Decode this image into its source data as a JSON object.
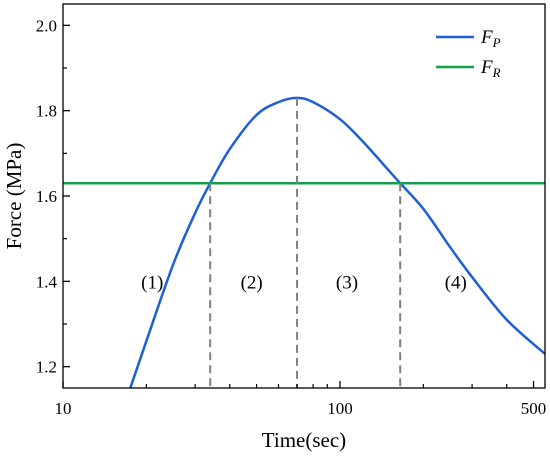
{
  "chart_data": {
    "type": "line",
    "xlabel": "Time(sec)",
    "ylabel": "Force (MPa)",
    "x_scale": "log",
    "xlim": [
      10,
      550
    ],
    "ylim": [
      1.15,
      2.05
    ],
    "x_ticks": [
      10,
      100,
      500
    ],
    "y_ticks": [
      1.2,
      1.4,
      1.6,
      1.8,
      2.0
    ],
    "grid": false,
    "legend_position": "top-right",
    "series": [
      {
        "name_main": "F",
        "name_sub": "P",
        "color": "#1f5fd6",
        "x": [
          17.5,
          20,
          25,
          30,
          34,
          40,
          50,
          60,
          70,
          80,
          100,
          120,
          150,
          165,
          200,
          250,
          300,
          400,
          550
        ],
        "y": [
          1.15,
          1.26,
          1.44,
          1.56,
          1.63,
          1.71,
          1.79,
          1.82,
          1.83,
          1.82,
          1.78,
          1.73,
          1.66,
          1.63,
          1.57,
          1.48,
          1.41,
          1.31,
          1.23
        ]
      },
      {
        "name_main": "F",
        "name_sub": "R",
        "color": "#14a04a",
        "x": [
          10,
          550
        ],
        "y": [
          1.63,
          1.63
        ]
      }
    ],
    "annotations": {
      "dashed_lines_x": [
        34,
        70,
        165
      ],
      "dashed_line_color": "#808080",
      "regions": [
        {
          "label": "(1)",
          "x": 21,
          "y": 1.4
        },
        {
          "label": "(2)",
          "x": 48,
          "y": 1.4
        },
        {
          "label": "(3)",
          "x": 106,
          "y": 1.4
        },
        {
          "label": "(4)",
          "x": 262,
          "y": 1.4
        }
      ]
    }
  }
}
